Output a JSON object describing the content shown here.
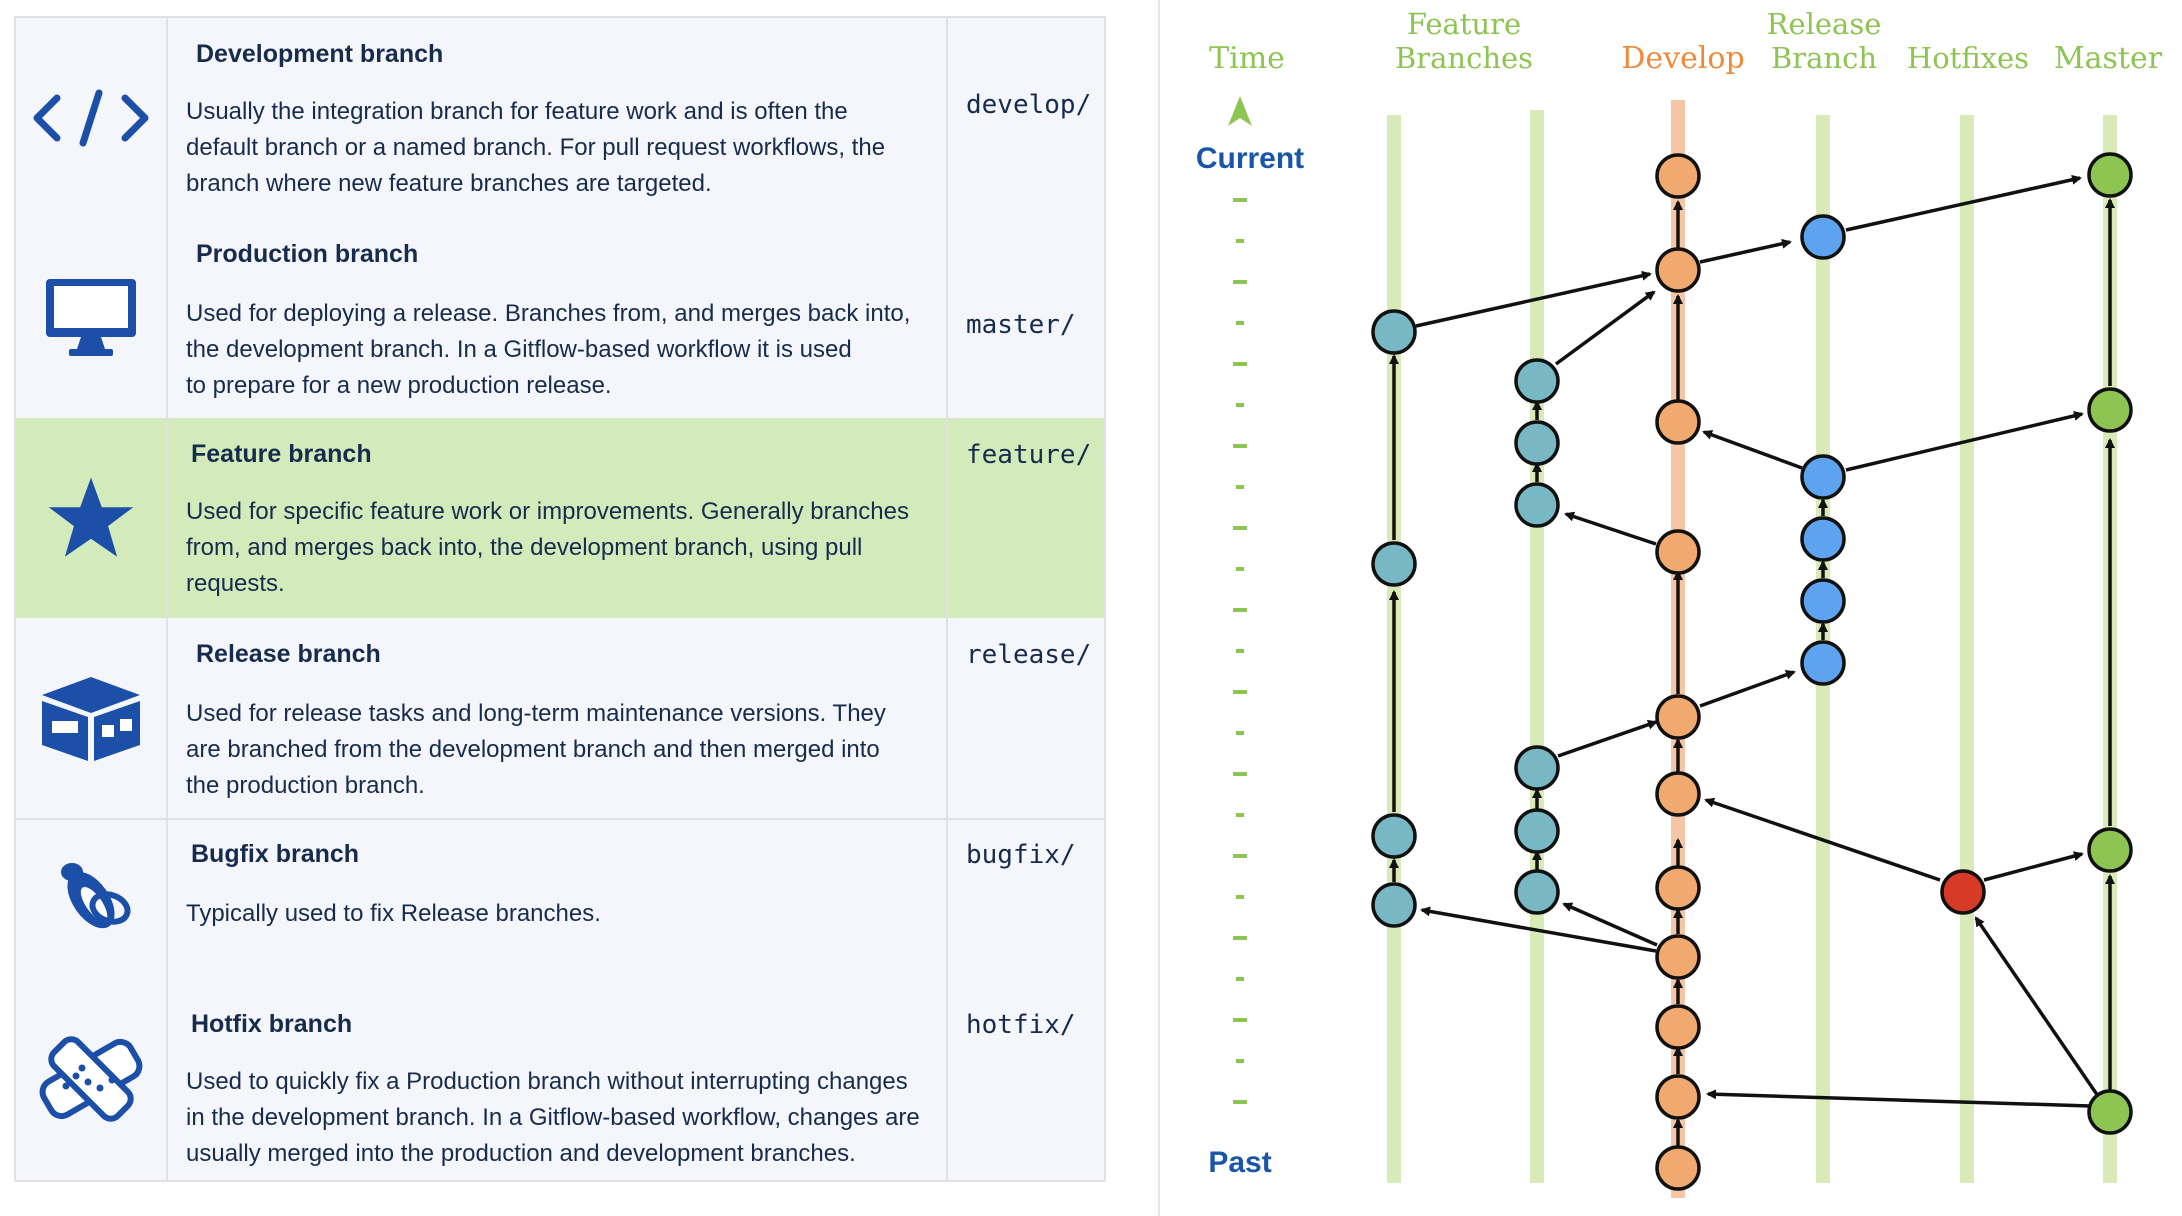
{
  "table": {
    "rows": [
      {
        "title": "Development branch",
        "lines": [
          "Usually the integration branch for feature work and is often the",
          "default branch or a named branch. For pull request workflows, the",
          "branch where new feature branches are targeted."
        ],
        "prefix": "develop/",
        "icon": "code-icon"
      },
      {
        "title": "Production branch",
        "lines": [
          "Used for deploying a release. Branches from, and merges back into,",
          "the development branch. In a Gitflow-based workflow it is used",
          "to prepare for a new production release."
        ],
        "prefix": "master/",
        "icon": "monitor-icon"
      },
      {
        "title": "Feature branch",
        "lines": [
          "Used for specific feature work or improvements. Generally branches",
          "from, and merges back into, the development branch, using pull",
          "requests."
        ],
        "prefix": "feature/",
        "icon": "star-icon"
      },
      {
        "title": "Release branch",
        "lines": [
          "Used for release tasks and long-term maintenance versions. They",
          "are branched from the development branch and then merged into",
          "the production branch."
        ],
        "prefix": "release/",
        "icon": "box-icon"
      },
      {
        "title": "Bugfix branch",
        "lines": [
          "Typically used to fix Release branches."
        ],
        "prefix": "bugfix/",
        "icon": "bug-icon"
      },
      {
        "title": "Hotfix branch",
        "lines": [
          "Used to quickly fix a Production branch without interrupting changes",
          "in the development branch. In a Gitflow-based workflow, changes are",
          "usually merged into the production and development branches."
        ],
        "prefix": "hotfix/",
        "icon": "bandage-icon"
      }
    ]
  },
  "diagram": {
    "time_label": "Time",
    "current_label": "Current",
    "past_label": "Past",
    "lanes": [
      {
        "id": "feature",
        "line1": "Feature",
        "line2": "Branches"
      },
      {
        "id": "develop",
        "line1": "",
        "line2": "Develop"
      },
      {
        "id": "release",
        "line1": "Release",
        "line2": "Branch"
      },
      {
        "id": "hotfixes",
        "line1": "",
        "line2": "Hotfixes"
      },
      {
        "id": "master",
        "line1": "",
        "line2": "Master"
      }
    ],
    "colors": {
      "feature": "#78b7c4",
      "develop": "#f0a96e",
      "release": "#5ea3f0",
      "hotfix": "#d73a27",
      "master": "#8dc452",
      "track": "#d8eab7",
      "develop_track": "#f5c6a6",
      "feature_label": "#8dc452",
      "develop_label": "#f08a3a",
      "current_past": "#1a56a8"
    }
  }
}
